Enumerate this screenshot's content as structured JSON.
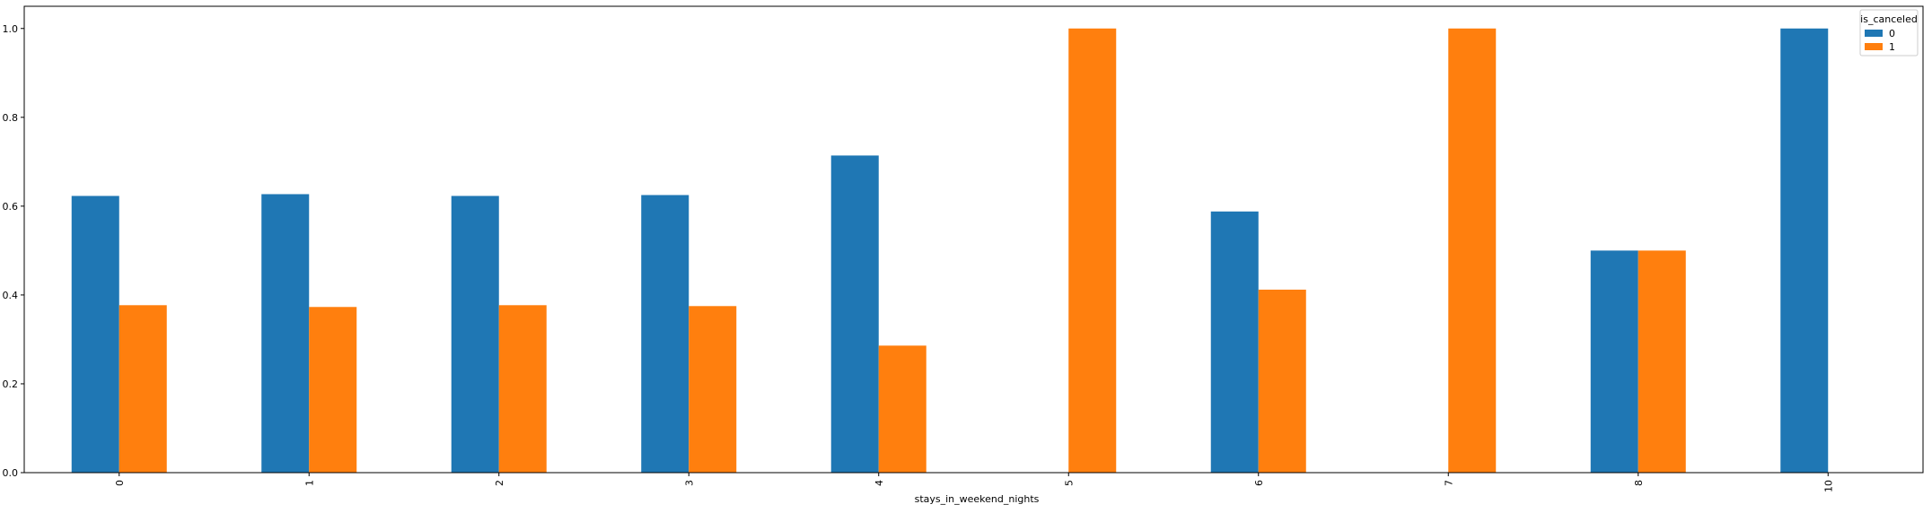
{
  "chart_data": {
    "type": "bar",
    "title": "",
    "xlabel": "stays_in_weekend_nights",
    "ylabel": "",
    "categories": [
      "0",
      "1",
      "2",
      "3",
      "4",
      "5",
      "6",
      "7",
      "8",
      "10"
    ],
    "series": [
      {
        "name": "0",
        "color": "#1f77b4",
        "values": [
          0.623,
          0.627,
          0.623,
          0.625,
          0.714,
          0.0,
          0.588,
          0.0,
          0.5,
          1.0
        ]
      },
      {
        "name": "1",
        "color": "#ff7f0e",
        "values": [
          0.377,
          0.373,
          0.377,
          0.375,
          0.286,
          1.0,
          0.412,
          1.0,
          0.5,
          0.0
        ]
      }
    ],
    "ylim": [
      0,
      1.05
    ],
    "yticks": [
      "0.0",
      "0.2",
      "0.4",
      "0.6",
      "0.8",
      "1.0"
    ],
    "legend": {
      "title": "is_canceled",
      "placement": "top-right"
    },
    "grid": false
  }
}
